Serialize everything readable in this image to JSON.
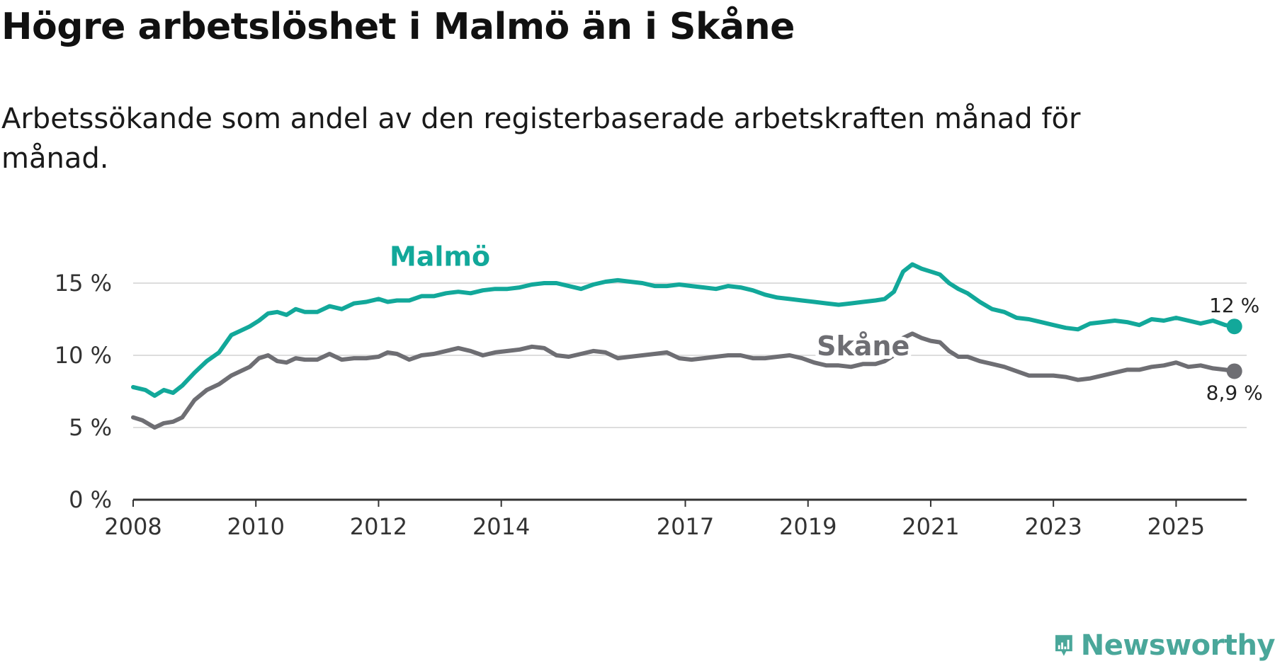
{
  "title": "Högre arbetslöshet i Malmö än i Skåne",
  "subtitle": "Arbetssökande som andel av den registerbaserade arbetskraften månad för månad.",
  "brand": "Newsworthy",
  "colors": {
    "malmo": "#12a89a",
    "skane": "#6e6e73",
    "grid": "#dddddd",
    "axis": "#333333",
    "brand": "#4aa79a"
  },
  "chart_data": {
    "type": "line",
    "title": "Högre arbetslöshet i Malmö än i Skåne",
    "subtitle": "Arbetssökande som andel av den registerbaserade arbetskraften månad för månad.",
    "xlabel": "",
    "ylabel": "",
    "xlim": [
      2008.0,
      2026.15
    ],
    "ylim": [
      0,
      15
    ],
    "grid": true,
    "y_ticks": [
      0,
      5,
      10,
      15
    ],
    "y_tick_labels": [
      "0 %",
      "5 %",
      "10 %",
      "15 %"
    ],
    "x_ticks": [
      2008,
      2010,
      2012,
      2014,
      2017,
      2019,
      2021,
      2023,
      2025
    ],
    "x_tick_labels": [
      "2008",
      "2010",
      "2012",
      "2014",
      "2017",
      "2019",
      "2021",
      "2023",
      "2025"
    ],
    "series": [
      {
        "name": "Malmö",
        "color": "#12a89a",
        "end_label": "12 %",
        "x": [
          2008.0,
          2008.2,
          2008.35,
          2008.5,
          2008.65,
          2008.8,
          2009.0,
          2009.2,
          2009.4,
          2009.6,
          2009.75,
          2009.9,
          2010.05,
          2010.2,
          2010.35,
          2010.5,
          2010.65,
          2010.8,
          2011.0,
          2011.2,
          2011.4,
          2011.6,
          2011.8,
          2012.0,
          2012.15,
          2012.3,
          2012.5,
          2012.7,
          2012.9,
          2013.1,
          2013.3,
          2013.5,
          2013.7,
          2013.9,
          2014.1,
          2014.3,
          2014.5,
          2014.7,
          2014.9,
          2015.1,
          2015.3,
          2015.5,
          2015.7,
          2015.9,
          2016.1,
          2016.3,
          2016.5,
          2016.7,
          2016.9,
          2017.1,
          2017.3,
          2017.5,
          2017.7,
          2017.9,
          2018.1,
          2018.3,
          2018.5,
          2018.7,
          2018.9,
          2019.1,
          2019.3,
          2019.5,
          2019.7,
          2019.9,
          2020.1,
          2020.25,
          2020.4,
          2020.55,
          2020.7,
          2020.85,
          2021.0,
          2021.15,
          2021.3,
          2021.45,
          2021.6,
          2021.8,
          2022.0,
          2022.2,
          2022.4,
          2022.6,
          2022.8,
          2023.0,
          2023.2,
          2023.4,
          2023.6,
          2023.8,
          2024.0,
          2024.2,
          2024.4,
          2024.6,
          2024.8,
          2025.0,
          2025.2,
          2025.4,
          2025.6,
          2025.8,
          2025.95
        ],
        "values": [
          7.8,
          7.6,
          7.2,
          7.6,
          7.4,
          7.9,
          8.8,
          9.6,
          10.2,
          11.4,
          11.7,
          12.0,
          12.4,
          12.9,
          13.0,
          12.8,
          13.2,
          13.0,
          13.0,
          13.4,
          13.2,
          13.6,
          13.7,
          13.9,
          13.7,
          13.8,
          13.8,
          14.1,
          14.1,
          14.3,
          14.4,
          14.3,
          14.5,
          14.6,
          14.6,
          14.7,
          14.9,
          15.0,
          15.0,
          14.8,
          14.6,
          14.9,
          15.1,
          15.2,
          15.1,
          15.0,
          14.8,
          14.8,
          14.9,
          14.8,
          14.7,
          14.6,
          14.8,
          14.7,
          14.5,
          14.2,
          14.0,
          13.9,
          13.8,
          13.7,
          13.6,
          13.5,
          13.6,
          13.7,
          13.8,
          13.9,
          14.4,
          15.8,
          16.3,
          16.0,
          15.8,
          15.6,
          15.0,
          14.6,
          14.3,
          13.7,
          13.2,
          13.0,
          12.6,
          12.5,
          12.3,
          12.1,
          11.9,
          11.8,
          12.2,
          12.3,
          12.4,
          12.3,
          12.1,
          12.5,
          12.4,
          12.6,
          12.4,
          12.2,
          12.4,
          12.1,
          12.0
        ]
      },
      {
        "name": "Skåne",
        "color": "#6e6e73",
        "end_label": "8,9 %",
        "x": [
          2008.0,
          2008.15,
          2008.35,
          2008.5,
          2008.65,
          2008.8,
          2009.0,
          2009.2,
          2009.4,
          2009.6,
          2009.75,
          2009.9,
          2010.05,
          2010.2,
          2010.35,
          2010.5,
          2010.65,
          2010.8,
          2011.0,
          2011.2,
          2011.4,
          2011.6,
          2011.8,
          2012.0,
          2012.15,
          2012.3,
          2012.5,
          2012.7,
          2012.9,
          2013.1,
          2013.3,
          2013.5,
          2013.7,
          2013.9,
          2014.1,
          2014.3,
          2014.5,
          2014.7,
          2014.9,
          2015.1,
          2015.3,
          2015.5,
          2015.7,
          2015.9,
          2016.1,
          2016.3,
          2016.5,
          2016.7,
          2016.9,
          2017.1,
          2017.3,
          2017.5,
          2017.7,
          2017.9,
          2018.1,
          2018.3,
          2018.5,
          2018.7,
          2018.9,
          2019.1,
          2019.3,
          2019.5,
          2019.7,
          2019.9,
          2020.1,
          2020.25,
          2020.4,
          2020.55,
          2020.7,
          2020.85,
          2021.0,
          2021.15,
          2021.3,
          2021.45,
          2021.6,
          2021.8,
          2022.0,
          2022.2,
          2022.4,
          2022.6,
          2022.8,
          2023.0,
          2023.2,
          2023.4,
          2023.6,
          2023.8,
          2024.0,
          2024.2,
          2024.4,
          2024.6,
          2024.8,
          2025.0,
          2025.2,
          2025.4,
          2025.6,
          2025.8,
          2025.95
        ],
        "values": [
          5.7,
          5.5,
          5.0,
          5.3,
          5.4,
          5.7,
          6.9,
          7.6,
          8.0,
          8.6,
          8.9,
          9.2,
          9.8,
          10.0,
          9.6,
          9.5,
          9.8,
          9.7,
          9.7,
          10.1,
          9.7,
          9.8,
          9.8,
          9.9,
          10.2,
          10.1,
          9.7,
          10.0,
          10.1,
          10.3,
          10.5,
          10.3,
          10.0,
          10.2,
          10.3,
          10.4,
          10.6,
          10.5,
          10.0,
          9.9,
          10.1,
          10.3,
          10.2,
          9.8,
          9.9,
          10.0,
          10.1,
          10.2,
          9.8,
          9.7,
          9.8,
          9.9,
          10.0,
          10.0,
          9.8,
          9.8,
          9.9,
          10.0,
          9.8,
          9.5,
          9.3,
          9.3,
          9.2,
          9.4,
          9.4,
          9.6,
          10.0,
          11.2,
          11.5,
          11.2,
          11.0,
          10.9,
          10.3,
          9.9,
          9.9,
          9.6,
          9.4,
          9.2,
          8.9,
          8.6,
          8.6,
          8.6,
          8.5,
          8.3,
          8.4,
          8.6,
          8.8,
          9.0,
          9.0,
          9.2,
          9.3,
          9.5,
          9.2,
          9.3,
          9.1,
          9.0,
          8.9
        ]
      }
    ]
  }
}
